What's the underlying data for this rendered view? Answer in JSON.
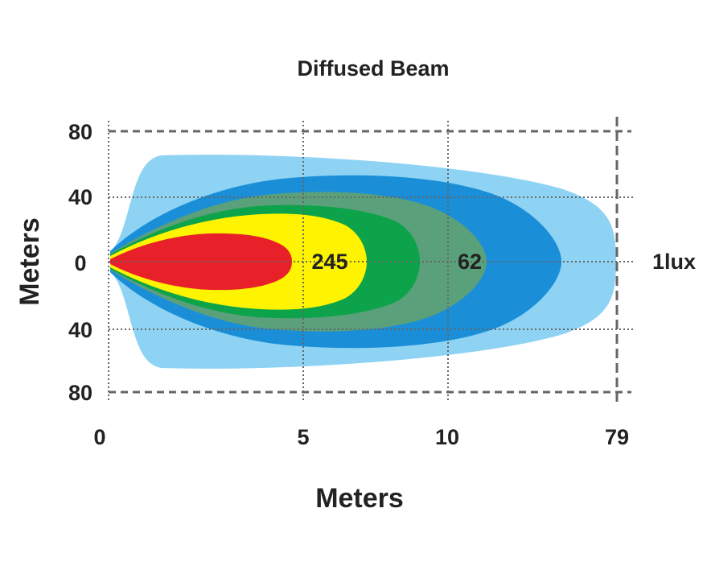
{
  "chart_data": {
    "type": "area",
    "title": "Diffused Beam",
    "xlabel": "Meters",
    "ylabel": "Meters",
    "x_ticks": [
      "0",
      "5",
      "10",
      "79"
    ],
    "y_ticks": [
      "80",
      "40",
      "0",
      "40",
      "80"
    ],
    "zones": [
      {
        "color": "#8fd3f4"
      },
      {
        "color": "#1a8fd8"
      },
      {
        "color": "#5aa07a"
      },
      {
        "color": "#0ca34a"
      },
      {
        "color": "#fef300"
      },
      {
        "color": "#e8202a"
      }
    ],
    "annotations": [
      {
        "text": "245"
      },
      {
        "text": "62"
      },
      {
        "text": "1lux"
      }
    ],
    "grid": true
  }
}
